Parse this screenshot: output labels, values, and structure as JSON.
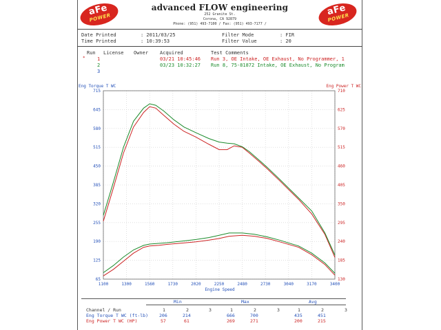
{
  "header": {
    "logo_text": "aFe",
    "logo_sub": "POWER",
    "company": "advanced FLOW engineering",
    "address_line1": "252 Granite St.",
    "address_line2": "Corona, CA 92879",
    "address_line3": "Phone: (951) 493-7100 /   Fax: (951) 493-7177 /"
  },
  "info": {
    "date_printed_label": "Date Printed",
    "date_printed_value": ": 2011/03/25",
    "time_printed_label": "Time Printed",
    "time_printed_value": ": 10:39:53",
    "filter_mode_label": "Filter Mode",
    "filter_mode_value": ": FIR",
    "filter_value_label": "Filter Value",
    "filter_value_value": ": 20"
  },
  "runs": {
    "col_run": "Run",
    "col_license": "License",
    "col_owner": "Owner",
    "col_acquired": "Acquired",
    "col_comments": "Test Comments",
    "rows": [
      {
        "num": "1",
        "acquired": "03/21 10:45:46",
        "comment": "Run 3, OE Intake, OE Exhaust, No Programmer, 1",
        "color": "#c22"
      },
      {
        "num": "2",
        "acquired": "03/23 10:32:27",
        "comment": "Run 8, 75-81872 Intake, OE Exhaust, No Program",
        "color": "#1a8a2a"
      },
      {
        "num": "3",
        "acquired": "",
        "comment": "",
        "color": "#224fb8"
      }
    ]
  },
  "chart_data": {
    "type": "line",
    "title": "",
    "xlabel": "Engine Speed",
    "ylabel_left": "Eng Torque T WC",
    "ylabel_right": "Eng Power T WC",
    "x_ticks": [
      "1100",
      "1300",
      "1560",
      "1730",
      "2020",
      "2250",
      "2480",
      "2730",
      "3040",
      "3170",
      "3400"
    ],
    "xlim": [
      1100,
      3400
    ],
    "y_left_ticks": [
      "65",
      "125",
      "190",
      "255",
      "320",
      "385",
      "450",
      "515",
      "580",
      "645",
      "715"
    ],
    "y_left_lim": [
      65,
      715
    ],
    "y_right_ticks": [
      "130",
      "185",
      "240",
      "295",
      "350",
      "405",
      "460",
      "515",
      "570",
      "625",
      "710"
    ],
    "y_right_lim": [
      130,
      710
    ],
    "series": [
      {
        "name": "Eng Torque T WC Run 1",
        "color": "#c22",
        "axis": "left",
        "x": [
          1100,
          1200,
          1300,
          1400,
          1500,
          1560,
          1620,
          1700,
          1800,
          1900,
          2020,
          2150,
          2250,
          2330,
          2400,
          2480,
          2550,
          2650,
          2730,
          2850,
          3040,
          3170,
          3300,
          3400
        ],
        "y": [
          265,
          380,
          500,
          590,
          640,
          660,
          655,
          630,
          600,
          575,
          555,
          530,
          512,
          512,
          525,
          520,
          500,
          470,
          445,
          405,
          340,
          290,
          220,
          140
        ]
      },
      {
        "name": "Eng Torque T WC Run 2",
        "color": "#1a8a2a",
        "axis": "left",
        "x": [
          1100,
          1200,
          1300,
          1400,
          1500,
          1560,
          1620,
          1700,
          1800,
          1900,
          2020,
          2150,
          2250,
          2330,
          2400,
          2480,
          2550,
          2650,
          2730,
          2850,
          3040,
          3170,
          3300,
          3400
        ],
        "y": [
          285,
          400,
          520,
          610,
          655,
          670,
          665,
          645,
          615,
          590,
          570,
          550,
          538,
          534,
          532,
          522,
          505,
          475,
          450,
          410,
          345,
          300,
          225,
          148
        ]
      },
      {
        "name": "Eng Power T WC Run 1",
        "color": "#c22",
        "axis": "right",
        "x": [
          1100,
          1200,
          1300,
          1400,
          1500,
          1560,
          1650,
          1730,
          1850,
          2020,
          2150,
          2250,
          2350,
          2480,
          2600,
          2730,
          2850,
          3040,
          3170,
          3300,
          3400
        ],
        "y": [
          140,
          160,
          185,
          210,
          228,
          232,
          234,
          237,
          240,
          245,
          250,
          255,
          262,
          265,
          262,
          255,
          245,
          228,
          205,
          175,
          142
        ]
      },
      {
        "name": "Eng Power T WC Run 2",
        "color": "#1a8a2a",
        "axis": "right",
        "x": [
          1100,
          1200,
          1300,
          1400,
          1500,
          1560,
          1650,
          1730,
          1850,
          2020,
          2150,
          2250,
          2350,
          2480,
          2600,
          2730,
          2850,
          3040,
          3170,
          3300,
          3400
        ],
        "y": [
          150,
          172,
          198,
          220,
          234,
          238,
          240,
          242,
          246,
          252,
          258,
          265,
          272,
          272,
          268,
          260,
          250,
          232,
          210,
          180,
          148
        ]
      }
    ]
  },
  "stats": {
    "col_channel": "Channel / Run",
    "min_label": "Min",
    "max_label": "Max",
    "avg_label": "Avg",
    "run_nums": [
      "1",
      "2",
      "3"
    ],
    "rows": [
      {
        "name": "Eng Torque T WC (ft-lb)",
        "min": [
          "206",
          "214",
          ""
        ],
        "max": [
          "666",
          "700",
          ""
        ],
        "avg": [
          "435",
          "451",
          ""
        ],
        "color": "#224fb8"
      },
      {
        "name": "Eng Power T WC (HP)",
        "min": [
          "57",
          "61",
          ""
        ],
        "max": [
          "269",
          "271",
          ""
        ],
        "avg": [
          "200",
          "215",
          ""
        ],
        "color": "#c22"
      }
    ]
  }
}
